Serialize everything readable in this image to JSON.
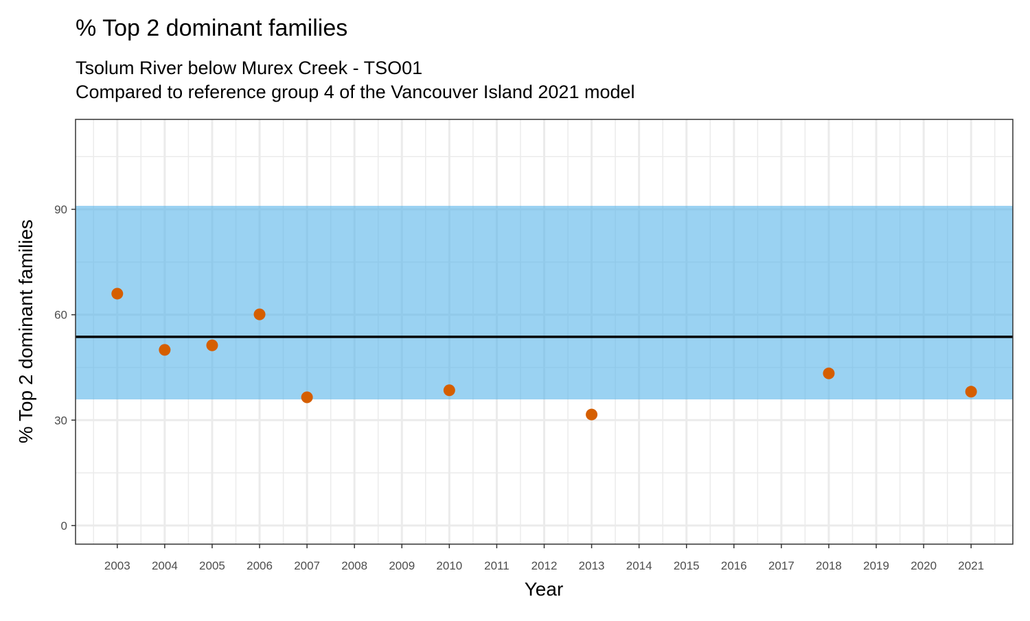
{
  "chart_data": {
    "type": "scatter",
    "title": "% Top 2 dominant families",
    "subtitle": [
      "Tsolum River below Murex Creek - TSO01",
      "Compared to reference group 4 of the Vancouver Island 2021 model"
    ],
    "xlabel": "Year",
    "ylabel": "% Top 2 dominant families",
    "x_ticks": [
      2003,
      2004,
      2005,
      2006,
      2007,
      2008,
      2009,
      2010,
      2011,
      2012,
      2013,
      2014,
      2015,
      2016,
      2017,
      2018,
      2019,
      2020,
      2021
    ],
    "y_ticks": [
      0,
      30,
      60,
      90
    ],
    "xlim": [
      2002.12,
      2021.88
    ],
    "ylim": [
      -5.3,
      115.6
    ],
    "grid": true,
    "points": [
      {
        "x": 2003,
        "y": 66.0
      },
      {
        "x": 2004,
        "y": 50.0
      },
      {
        "x": 2005,
        "y": 51.3
      },
      {
        "x": 2006,
        "y": 60.1
      },
      {
        "x": 2007,
        "y": 36.5
      },
      {
        "x": 2010,
        "y": 38.5
      },
      {
        "x": 2013,
        "y": 31.6
      },
      {
        "x": 2018,
        "y": 43.3
      },
      {
        "x": 2021,
        "y": 38.1
      }
    ],
    "reference_band": {
      "low": 35.9,
      "high": 91.0
    },
    "reference_line": 53.7,
    "colors": {
      "points": "#D55E00",
      "band": "#56B4E9",
      "line": "#000000"
    }
  }
}
